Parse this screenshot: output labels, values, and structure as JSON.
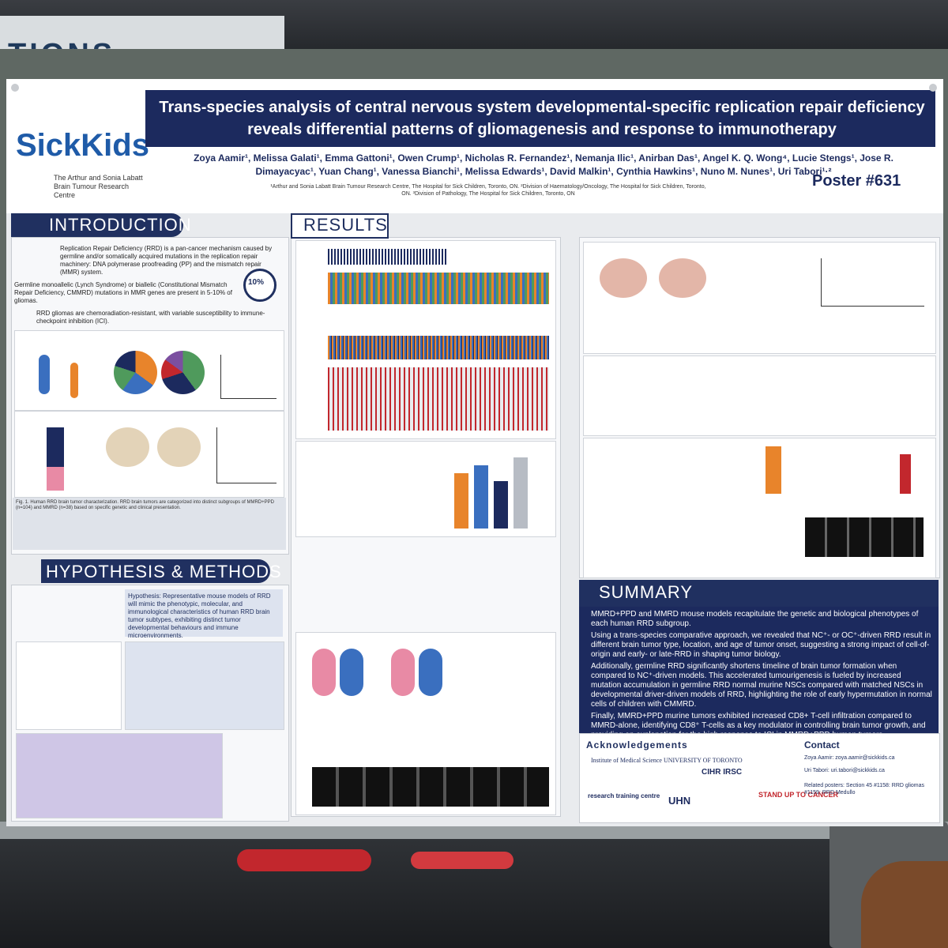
{
  "environment": {
    "sign_text": "TIONS"
  },
  "poster": {
    "logo": "SickKids",
    "logo_sub": "The Arthur and Sonia Labatt Brain Tumour Research Centre",
    "title": "Trans-species analysis of central nervous system developmental-specific replication repair deficiency reveals differential patterns of gliomagenesis and response to immunotherapy",
    "authors": "Zoya Aamir¹, Melissa Galati¹, Emma Gattoni¹, Owen Crump¹, Nicholas R. Fernandez¹, Nemanja Ilic¹, Anirban Das¹, Angel K. Q. Wong⁴, Lucie Stengs¹, Jose R. Dimayacyac¹, Yuan Chang¹, Vanessa Bianchi¹, Melissa Edwards¹, David Malkin¹, Cynthia Hawkins¹, Nuno M. Nunes¹, Uri Tabori¹·²",
    "affiliations": "¹Arthur and Sonia Labatt Brain Tumour Research Centre, The Hospital for Sick Children, Toronto, ON. ²Division of Haematology/Oncology, The Hospital for Sick Children, Toronto, ON. ³Division of Pathology, The Hospital for Sick Children, Toronto, ON",
    "poster_number": "Poster #631",
    "sections": {
      "introduction": "INTRODUCTION",
      "results": "RESULTS",
      "hypothesis": "HYPOTHESIS & METHODS",
      "summary": "SUMMARY",
      "acknowledgements": "Acknowledgements",
      "contact": "Contact"
    },
    "intro": {
      "p1": "Replication Repair Deficiency (RRD) is a pan-cancer mechanism caused by germline and/or somatically acquired mutations in the replication repair machinery: DNA polymerase proofreading (PP) and the mismatch repair (MMR) system.",
      "p2": "Germline monoallelic (Lynch Syndrome) or biallelic (Constitutional Mismatch Repair Deficiency, CMMRD) mutations in MMR genes are present in 5-10% of gliomas.",
      "p3": "RRD gliomas are chemoradiation-resistant, with variable susceptibility to immune-checkpoint inhibition (ICI).",
      "pct": "10%"
    },
    "fig1_caption": "Fig. 1. Human RRD brain tumor characterization. RRD brain tumors are categorized into distinct subgroups of MMRD+PPD (n=104) and MMRD (n=38) based on specific genetic and clinical presentation.",
    "hypothesis": "Hypothesis: Representative mouse models of RRD will mimic the phenotypic, molecular, and immunological characteristics of human RRD brain tumor subtypes, exhibiting distinct tumor developmental behaviours and immune microenvironments.",
    "summary_points": [
      "MMRD+PPD and MMRD mouse models recapitulate the genetic and biological phenotypes of each human RRD subgroup.",
      "Using a trans-species comparative approach, we revealed that NC⁺- or OC⁺-driven RRD result in different brain tumor type, location, and age of tumor onset, suggesting a strong impact of cell-of-origin and early- or late-RRD in shaping tumor biology.",
      "Additionally, germline RRD significantly shortens timeline of brain tumor formation when compared to NC⁺-driven models. This accelerated tumourigenesis is fueled by increased mutation accumulation in germline RRD normal murine NSCs compared with matched NSCs in developmental driver-driven models of RRD, highlighting the role of early hypermutation in normal cells of children with CMMRD.",
      "Finally, MMRD+PPD murine tumors exhibited increased CD8+ T-cell infiltration compared to MMRD-alone, identifying CD8⁺ T-cells as a key modulator in controlling brain tumor growth, and providing an explanation for the high response to ICI in MMRD+PPD human tumors."
    ],
    "contact": {
      "line1": "Zoya Aamir: zoya.aamir@sickkids.ca",
      "line2": "Uri Tabori: uri.tabori@sickkids.ca",
      "related": "Related posters: Section 45 #1158: RRD gliomas   #1159: RRD Medullo"
    },
    "sponsors": {
      "uoft": "Institute of Medical Science UNIVERSITY OF TORONTO",
      "cihr": "CIHR IRSC",
      "uhn": "UHN",
      "stand": "STAND UP TO CANCER",
      "rtc": "research training centre"
    }
  },
  "colors": {
    "navy": "#1c2a5e",
    "board": "#5f6863",
    "accent_orange": "#e8842b",
    "accent_blue": "#3a6fbf"
  }
}
